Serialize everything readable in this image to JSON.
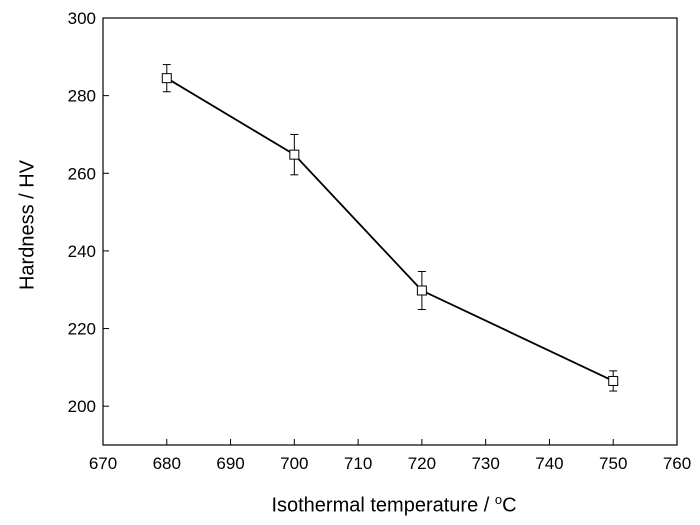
{
  "chart_data": {
    "type": "line",
    "title": "",
    "xlabel_main": "Isothermal temperature / ",
    "xlabel_unit_sup": "o",
    "xlabel_unit": "C",
    "ylabel": "Hardness / HV",
    "xlim": [
      670,
      760
    ],
    "ylim": [
      190,
      300
    ],
    "xticks": [
      670,
      680,
      690,
      700,
      710,
      720,
      730,
      740,
      750,
      760
    ],
    "yticks": [
      200,
      220,
      240,
      260,
      280,
      300
    ],
    "grid": false,
    "series": [
      {
        "marker": "open-square",
        "color": "#000000",
        "x": [
          680,
          700,
          720,
          750
        ],
        "y": [
          284.5,
          264.8,
          229.8,
          206.5
        ],
        "error": [
          3.5,
          5.2,
          4.9,
          2.6
        ]
      }
    ]
  }
}
